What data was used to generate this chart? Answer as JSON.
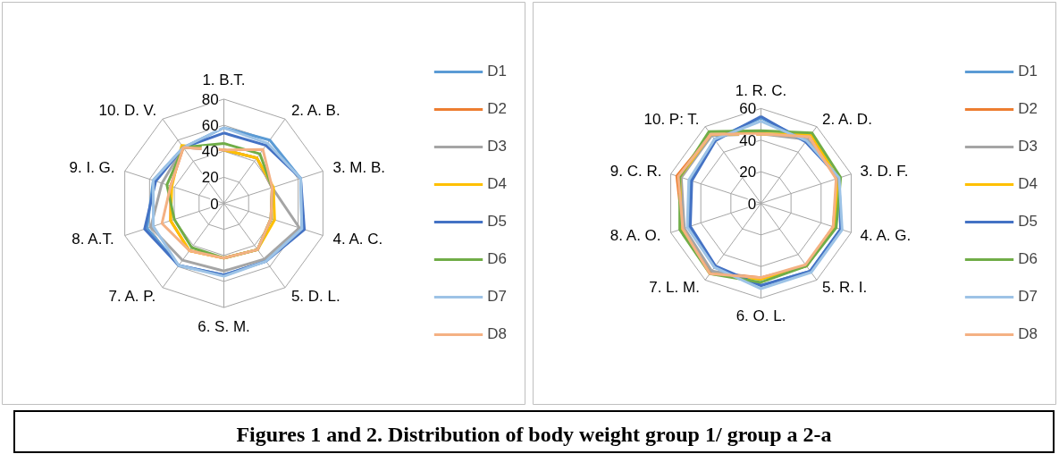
{
  "chart_data": [
    {
      "type": "radar",
      "categories": [
        "1. B.T.",
        "2. A. B.",
        "3. M. B.",
        "4. A. C.",
        "5. D. L.",
        "6. S. M.",
        "7. A. P.",
        "8. A.T.",
        "9. I. G.",
        "10. D. V."
      ],
      "ylim": [
        0,
        80
      ],
      "yticks": [
        0,
        20,
        40,
        60,
        80
      ],
      "legend": "right",
      "annotations": [
        "Figures 1 and 2. Distribution of body weight group 1/ group a 2-a"
      ],
      "series": [
        {
          "name": "D1",
          "color": "#5b9bd5",
          "values": [
            58,
            60,
            62,
            63,
            55,
            55,
            59,
            62,
            57,
            53
          ]
        },
        {
          "name": "D2",
          "color": "#ed7d31",
          "values": [
            41,
            43,
            39,
            38,
            44,
            42,
            45,
            43,
            43,
            53
          ]
        },
        {
          "name": "D3",
          "color": "#a5a5a5",
          "values": [
            41,
            43,
            39,
            61,
            53,
            52,
            54,
            59,
            50,
            53
          ]
        },
        {
          "name": "D4",
          "color": "#ffc000",
          "values": [
            41,
            43,
            40,
            41,
            44,
            42,
            45,
            43,
            42,
            55
          ]
        },
        {
          "name": "D5",
          "color": "#4472c4",
          "values": [
            54,
            55,
            62,
            65,
            55,
            55,
            59,
            64,
            55,
            53
          ]
        },
        {
          "name": "D6",
          "color": "#70ad47",
          "values": [
            46,
            47,
            39,
            38,
            44,
            42,
            42,
            40,
            46,
            53
          ]
        },
        {
          "name": "D7",
          "color": "#9dc3e6",
          "values": [
            58,
            57,
            62,
            63,
            55,
            56,
            59,
            57,
            57,
            53
          ]
        },
        {
          "name": "D8",
          "color": "#f4b183",
          "values": [
            41,
            51,
            39,
            38,
            44,
            42,
            45,
            50,
            43,
            53
          ]
        }
      ]
    },
    {
      "type": "radar",
      "categories": [
        "1. R. C.",
        "2. A. D.",
        "3. D. F.",
        "4. A. G.",
        "5. R. I.",
        "6. O. L.",
        "7. L. M.",
        "8. A. O.",
        "9. C. R.",
        "10. P: T."
      ],
      "ylim": [
        0,
        60
      ],
      "yticks": [
        0,
        20,
        40,
        60
      ],
      "legend": "right",
      "series": [
        {
          "name": "D1",
          "color": "#5b9bd5",
          "values": [
            54,
            49,
            52,
            53,
            53,
            52,
            50,
            48,
            47,
            50
          ]
        },
        {
          "name": "D2",
          "color": "#ed7d31",
          "values": [
            44,
            52,
            51,
            48,
            49,
            47,
            54,
            52,
            56,
            54
          ]
        },
        {
          "name": "D3",
          "color": "#a5a5a5",
          "values": [
            44,
            50,
            51,
            49,
            49,
            48,
            53,
            51,
            53,
            53
          ]
        },
        {
          "name": "D4",
          "color": "#ffc000",
          "values": [
            44,
            54,
            51,
            49,
            49,
            48,
            55,
            53,
            54,
            54
          ]
        },
        {
          "name": "D5",
          "color": "#4472c4",
          "values": [
            55,
            48,
            52,
            53,
            53,
            52,
            49,
            47,
            46,
            49
          ]
        },
        {
          "name": "D6",
          "color": "#70ad47",
          "values": [
            46,
            55,
            53,
            50,
            49,
            50,
            55,
            54,
            54,
            56
          ]
        },
        {
          "name": "D7",
          "color": "#9dc3e6",
          "values": [
            52,
            49,
            52,
            54,
            54,
            54,
            50,
            49,
            48,
            50
          ]
        },
        {
          "name": "D8",
          "color": "#f4b183",
          "values": [
            44,
            52,
            50,
            48,
            48,
            47,
            55,
            52,
            55,
            54
          ]
        }
      ]
    }
  ]
}
